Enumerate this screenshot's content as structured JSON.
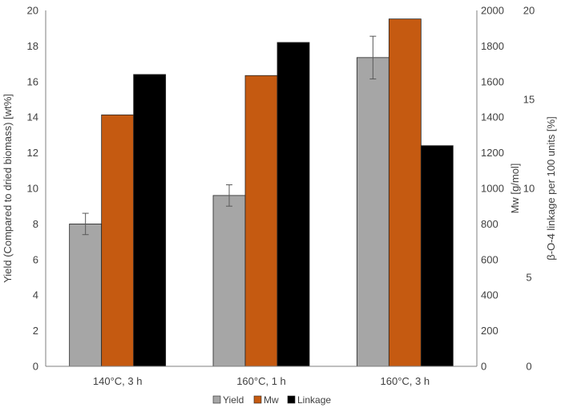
{
  "chart_data": {
    "type": "bar",
    "categories": [
      "140°C, 3 h",
      "160°C, 1 h",
      "160°C, 3 h"
    ],
    "series": [
      {
        "name": "Yield",
        "axis": "left",
        "color": "#a6a6a6",
        "values": [
          8.0,
          9.6,
          17.35
        ],
        "error": [
          0.6,
          0.6,
          1.2
        ]
      },
      {
        "name": "Mw",
        "axis": "right1",
        "color": "#c55a11",
        "values": [
          1413,
          1634,
          1952
        ]
      },
      {
        "name": "Linkage",
        "axis": "right2",
        "color": "#000000",
        "values": [
          16.4,
          18.2,
          12.4
        ]
      }
    ],
    "axes": {
      "left": {
        "label": "Yield (Compared to dried biomass)  [wt%]",
        "min": 0,
        "max": 20,
        "ticks": [
          0,
          2,
          4,
          6,
          8,
          10,
          12,
          14,
          16,
          18,
          20
        ]
      },
      "right1": {
        "label": "Mw [g/mol]",
        "min": 0,
        "max": 2000,
        "ticks": [
          0,
          200,
          400,
          600,
          800,
          1000,
          1200,
          1400,
          1600,
          1800,
          2000
        ]
      },
      "right2": {
        "label": "β-O-4 linkage per 100 units [%]",
        "min": 0,
        "max": 20,
        "ticks": [
          0,
          5,
          10,
          15,
          20
        ]
      }
    },
    "grid": false,
    "legend_position": "bottom"
  }
}
